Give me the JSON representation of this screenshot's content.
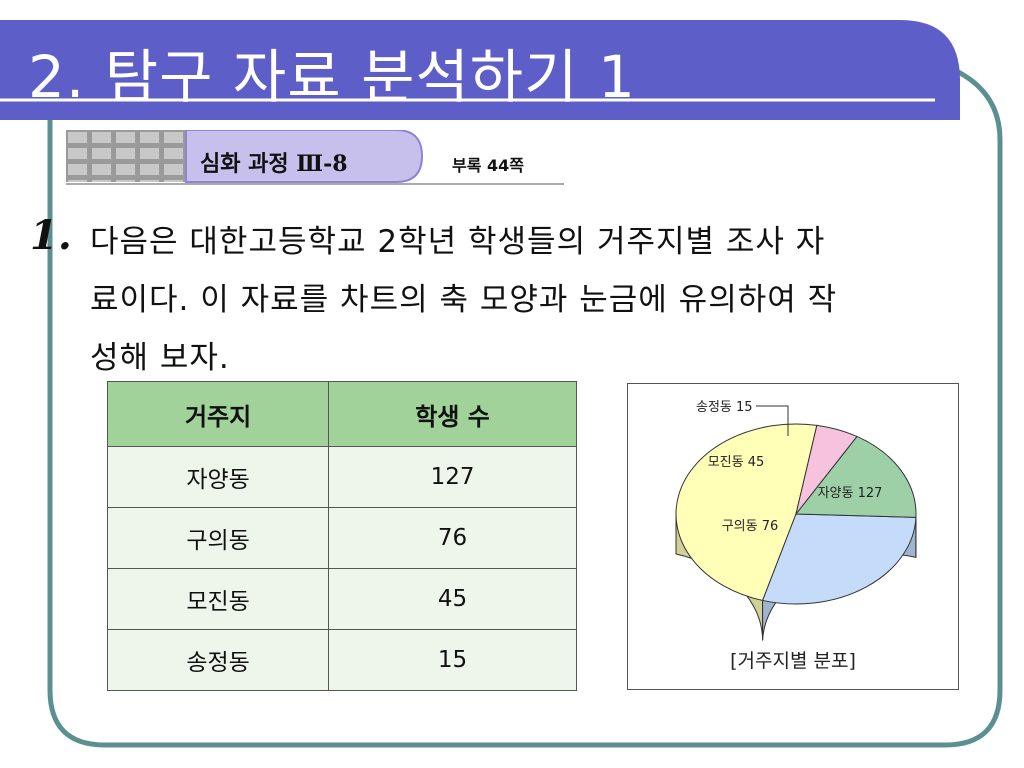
{
  "slide": {
    "title": "2. 탐구 자료 분석하기 1",
    "section_label": "심화 과정 Ⅲ-8",
    "appendix_ref": "부록 44쪽",
    "question_number": "1.",
    "question_lines": [
      "다음은 대한고등학교 2학년 학생들의 거주지별 조사 자",
      "료이다. 이 자료를 차트의 축 모양과 눈금에 유의하여 작",
      "성해 보자."
    ]
  },
  "table": {
    "headers": [
      "거주지",
      "학생 수"
    ],
    "rows": [
      [
        "자양동",
        "127"
      ],
      [
        "구의동",
        "76"
      ],
      [
        "모진동",
        "45"
      ],
      [
        "송정동",
        "15"
      ]
    ]
  },
  "chart_data": {
    "type": "pie",
    "caption": "[거주지별 분포]",
    "categories": [
      "자양동",
      "구의동",
      "모진동",
      "송정동"
    ],
    "values": [
      127,
      76,
      45,
      15
    ],
    "labels": [
      "자양동 127",
      "구의동 76",
      "모진동 45",
      "송정동 15"
    ],
    "colors": [
      "#ffffb8",
      "#c4dcfa",
      "#9ed0a8",
      "#f7c2dd"
    ],
    "style": "3d"
  },
  "colors": {
    "title_bar": "#5e5ec8",
    "frame": "#5a9090",
    "section_tab": "#c8c0ec",
    "table_header": "#a0d29a",
    "table_cell": "#eef6ec"
  }
}
